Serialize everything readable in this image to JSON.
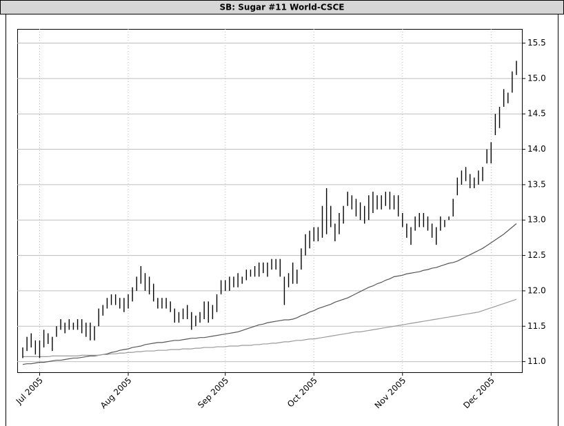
{
  "chart_data": {
    "type": "ohlc",
    "title": "SB: Sugar #11 World-CSCE",
    "categories": [
      null,
      null,
      null,
      null,
      "Jul 2005",
      null,
      null,
      null,
      null,
      null,
      null,
      null,
      null,
      null,
      null,
      null,
      null,
      null,
      null,
      null,
      null,
      null,
      null,
      null,
      null,
      "Aug 2005",
      null,
      null,
      null,
      null,
      null,
      null,
      null,
      null,
      null,
      null,
      null,
      null,
      null,
      null,
      null,
      null,
      null,
      null,
      null,
      null,
      null,
      null,
      "Sep 2005",
      null,
      null,
      null,
      null,
      null,
      null,
      null,
      null,
      null,
      null,
      null,
      null,
      null,
      null,
      null,
      null,
      null,
      null,
      null,
      null,
      "Oct 2005",
      null,
      null,
      null,
      null,
      null,
      null,
      null,
      null,
      null,
      null,
      null,
      null,
      null,
      null,
      null,
      null,
      null,
      null,
      null,
      null,
      "Nov 2005",
      null,
      null,
      null,
      null,
      null,
      null,
      null,
      null,
      null,
      null,
      null,
      null,
      null,
      null,
      null,
      null,
      null,
      null,
      null,
      null,
      "Dec 2005",
      null,
      null,
      null,
      null,
      null,
      null
    ],
    "high": [
      11.2,
      11.35,
      11.4,
      11.3,
      11.3,
      11.45,
      11.4,
      11.35,
      11.5,
      11.6,
      11.55,
      11.6,
      11.55,
      11.6,
      11.6,
      11.55,
      11.55,
      11.5,
      11.75,
      11.8,
      11.9,
      11.95,
      11.95,
      11.9,
      11.9,
      11.95,
      12.05,
      12.2,
      12.35,
      12.25,
      12.2,
      12.1,
      11.9,
      11.9,
      11.9,
      11.85,
      11.75,
      11.7,
      11.75,
      11.8,
      11.7,
      11.65,
      11.7,
      11.85,
      11.85,
      11.8,
      11.95,
      12.15,
      12.15,
      12.2,
      12.2,
      12.25,
      12.2,
      12.3,
      12.3,
      12.35,
      12.4,
      12.4,
      12.4,
      12.45,
      12.45,
      12.45,
      12.2,
      12.25,
      12.4,
      12.3,
      12.6,
      12.8,
      12.85,
      12.9,
      12.9,
      13.2,
      13.45,
      13.2,
      12.95,
      13.1,
      13.2,
      13.4,
      13.35,
      13.3,
      13.25,
      13.2,
      13.35,
      13.4,
      13.35,
      13.35,
      13.4,
      13.4,
      13.35,
      13.35,
      13.1,
      12.95,
      12.9,
      13.05,
      13.1,
      13.1,
      13.05,
      12.95,
      12.9,
      13.05,
      13.0,
      13.05,
      13.3,
      13.6,
      13.7,
      13.75,
      13.65,
      13.6,
      13.7,
      13.75,
      14.0,
      14.1,
      14.5,
      14.6,
      14.85,
      14.8,
      15.1,
      15.25
    ],
    "low": [
      11.05,
      11.15,
      11.2,
      11.1,
      11.05,
      11.2,
      11.25,
      11.15,
      11.35,
      11.45,
      11.4,
      11.45,
      11.45,
      11.45,
      11.4,
      11.35,
      11.3,
      11.3,
      11.5,
      11.65,
      11.75,
      11.8,
      11.8,
      11.75,
      11.7,
      11.75,
      11.85,
      12.0,
      12.1,
      12.0,
      11.95,
      11.85,
      11.75,
      11.75,
      11.75,
      11.7,
      11.55,
      11.55,
      11.6,
      11.6,
      11.45,
      11.5,
      11.55,
      11.6,
      11.55,
      11.6,
      11.7,
      11.95,
      12.0,
      12.0,
      12.05,
      12.05,
      12.1,
      12.15,
      12.2,
      12.2,
      12.2,
      12.25,
      12.2,
      12.3,
      12.3,
      12.2,
      11.8,
      12.05,
      12.1,
      12.1,
      12.3,
      12.5,
      12.6,
      12.7,
      12.7,
      12.75,
      12.8,
      12.9,
      12.7,
      12.8,
      12.95,
      13.2,
      13.15,
      13.05,
      13.0,
      12.95,
      13.0,
      13.1,
      13.15,
      13.15,
      13.2,
      13.15,
      13.15,
      13.05,
      12.9,
      12.75,
      12.65,
      12.85,
      12.9,
      12.9,
      12.85,
      12.75,
      12.65,
      12.85,
      12.9,
      13.0,
      13.05,
      13.35,
      13.5,
      13.55,
      13.45,
      13.45,
      13.5,
      13.55,
      13.8,
      13.8,
      14.2,
      14.3,
      14.6,
      14.65,
      14.8,
      15.05
    ],
    "color": "#000000",
    "lines": [
      {
        "color": "#555555",
        "values": [
          10.96,
          10.97,
          10.97,
          10.98,
          10.99,
          10.99,
          11.0,
          11.01,
          11.02,
          11.02,
          11.03,
          11.04,
          11.05,
          11.05,
          11.06,
          11.07,
          11.08,
          11.08,
          11.09,
          11.1,
          11.11,
          11.13,
          11.14,
          11.16,
          11.17,
          11.18,
          11.2,
          11.21,
          11.22,
          11.24,
          11.25,
          11.26,
          11.27,
          11.27,
          11.28,
          11.29,
          11.3,
          11.3,
          11.31,
          11.32,
          11.33,
          11.33,
          11.34,
          11.34,
          11.35,
          11.36,
          11.37,
          11.38,
          11.39,
          11.4,
          11.41,
          11.42,
          11.44,
          11.46,
          11.48,
          11.5,
          11.52,
          11.53,
          11.55,
          11.56,
          11.57,
          11.58,
          11.59,
          11.59,
          11.6,
          11.62,
          11.65,
          11.67,
          11.7,
          11.72,
          11.75,
          11.77,
          11.79,
          11.81,
          11.84,
          11.86,
          11.88,
          11.9,
          11.93,
          11.96,
          11.99,
          12.02,
          12.05,
          12.07,
          12.1,
          12.12,
          12.15,
          12.17,
          12.2,
          12.21,
          12.22,
          12.24,
          12.25,
          12.26,
          12.27,
          12.29,
          12.3,
          12.32,
          12.33,
          12.35,
          12.37,
          12.39,
          12.4,
          12.42,
          12.45,
          12.48,
          12.51,
          12.54,
          12.57,
          12.6,
          12.64,
          12.68,
          12.72,
          12.76,
          12.8,
          12.85,
          12.9,
          12.95
        ]
      },
      {
        "color": "#999999",
        "values": [
          11.07,
          11.07,
          11.07,
          11.07,
          11.07,
          11.07,
          11.07,
          11.08,
          11.08,
          11.08,
          11.08,
          11.08,
          11.08,
          11.08,
          11.09,
          11.09,
          11.09,
          11.09,
          11.09,
          11.1,
          11.1,
          11.11,
          11.11,
          11.12,
          11.12,
          11.13,
          11.13,
          11.14,
          11.14,
          11.15,
          11.15,
          11.15,
          11.16,
          11.16,
          11.16,
          11.17,
          11.17,
          11.17,
          11.18,
          11.18,
          11.18,
          11.19,
          11.19,
          11.2,
          11.2,
          11.2,
          11.21,
          11.21,
          11.21,
          11.22,
          11.22,
          11.22,
          11.23,
          11.23,
          11.23,
          11.24,
          11.24,
          11.25,
          11.25,
          11.26,
          11.26,
          11.27,
          11.28,
          11.28,
          11.29,
          11.3,
          11.3,
          11.31,
          11.32,
          11.32,
          11.33,
          11.34,
          11.35,
          11.36,
          11.37,
          11.38,
          11.39,
          11.4,
          11.41,
          11.42,
          11.42,
          11.43,
          11.44,
          11.45,
          11.46,
          11.47,
          11.48,
          11.49,
          11.5,
          11.51,
          11.52,
          11.53,
          11.54,
          11.55,
          11.56,
          11.57,
          11.58,
          11.59,
          11.6,
          11.61,
          11.62,
          11.63,
          11.64,
          11.65,
          11.66,
          11.67,
          11.68,
          11.69,
          11.7,
          11.72,
          11.74,
          11.76,
          11.78,
          11.8,
          11.82,
          11.84,
          11.86,
          11.88
        ]
      }
    ],
    "ylim": [
      10.85,
      15.7
    ],
    "yticks": [
      {
        "value": 11,
        "label": "11.0"
      },
      11.5,
      {
        "value": 12,
        "label": "12.0"
      },
      12.5,
      {
        "value": 13,
        "label": "13.0"
      },
      13.5,
      {
        "value": 14,
        "label": "14.0"
      },
      14.5,
      {
        "value": 15,
        "label": "15.0"
      },
      15.5
    ],
    "grid": true
  }
}
